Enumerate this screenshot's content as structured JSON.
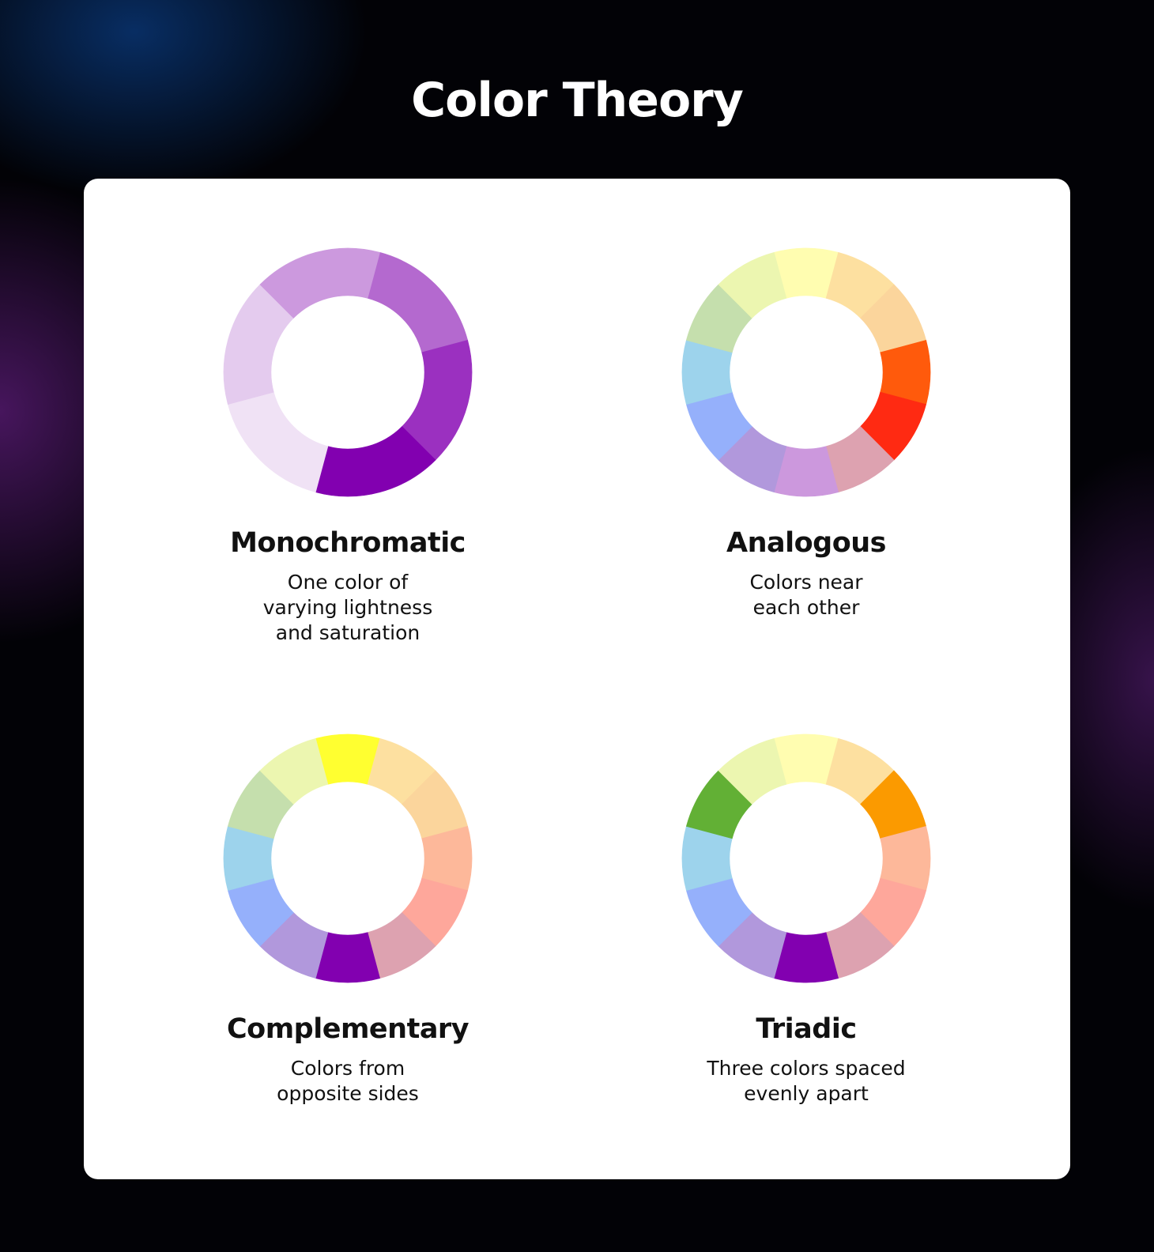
{
  "title": "Color Theory",
  "schemes": [
    {
      "name": "Monochromatic",
      "description": [
        "One color of",
        "varying lightness",
        "and saturation"
      ],
      "start_angle": 15,
      "segments": [
        "#b469cf",
        "#9b30c0",
        "#8200b0",
        "#f0e2f5",
        "#e4cbee",
        "#cc99de"
      ]
    },
    {
      "name": "Analogous",
      "description": [
        "Colors near",
        "each other"
      ],
      "start_angle": -15,
      "segments": [
        "#fffdb0",
        "#fde0a0",
        "#fbd59c",
        "#ff5a0c",
        "#ff2a12",
        "#dda2b0",
        "#cc98dd",
        "#b198dc",
        "#95b0fb",
        "#9dd3ec",
        "#c5dfad",
        "#ecf6b0"
      ]
    },
    {
      "name": "Complementary",
      "description": [
        "Colors from",
        "opposite sides"
      ],
      "start_angle": -15,
      "segments": [
        "#ffff30",
        "#fde0a0",
        "#fbd59c",
        "#fdb89a",
        "#fea79b",
        "#dda2b0",
        "#8200b0",
        "#b198dc",
        "#95b0fb",
        "#9dd3ec",
        "#c5dfad",
        "#ecf6b0"
      ]
    },
    {
      "name": "Triadic",
      "description": [
        "Three colors spaced",
        "evenly apart"
      ],
      "start_angle": -15,
      "segments": [
        "#fffdb0",
        "#fde0a0",
        "#fb9a00",
        "#fdb89a",
        "#fea79b",
        "#dda2b0",
        "#8200b0",
        "#b198dc",
        "#95b0fb",
        "#9dd3ec",
        "#62b035",
        "#ecf6b0"
      ]
    }
  ]
}
